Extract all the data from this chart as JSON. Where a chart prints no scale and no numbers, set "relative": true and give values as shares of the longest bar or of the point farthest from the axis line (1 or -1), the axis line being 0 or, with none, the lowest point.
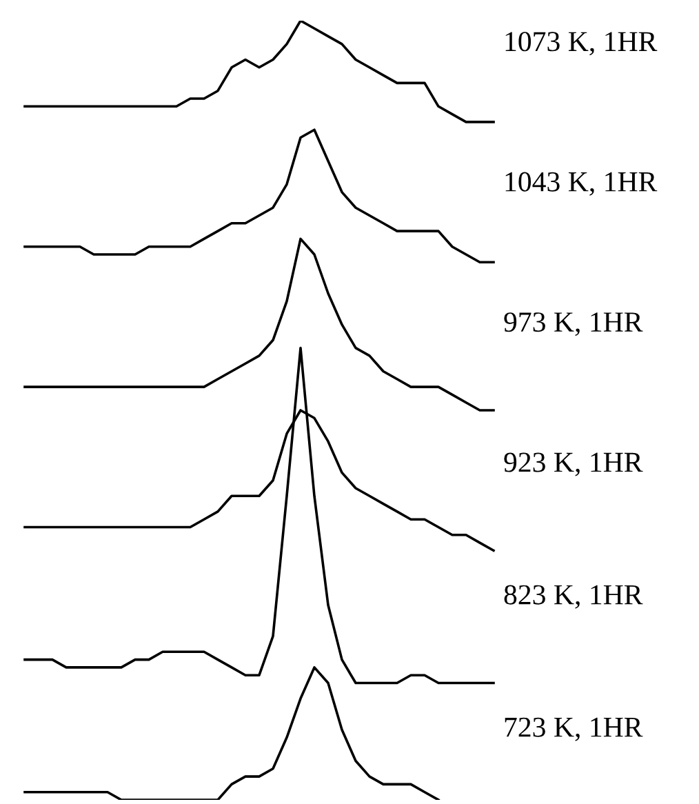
{
  "chart_data": {
    "type": "line",
    "relative": true,
    "legend": false,
    "categories": [
      null,
      null,
      null,
      null,
      null,
      null,
      null,
      null,
      null,
      null,
      null,
      null,
      null,
      null,
      null,
      null,
      null,
      null,
      null,
      null,
      null,
      null,
      null,
      null,
      null,
      null,
      null,
      null,
      null,
      null,
      null,
      null,
      null,
      null,
      null
    ],
    "series": [
      {
        "name": "1073 K, 1HR",
        "color": "#000000",
        "values": [
          0.89,
          0.89,
          0.89,
          0.89,
          0.89,
          0.89,
          0.89,
          0.89,
          0.89,
          0.89,
          0.89,
          0.89,
          0.9,
          0.9,
          0.91,
          0.94,
          0.95,
          0.94,
          0.95,
          0.97,
          1.0,
          0.99,
          0.98,
          0.97,
          0.95,
          0.94,
          0.93,
          0.92,
          0.92,
          0.92,
          0.89,
          0.88,
          0.87,
          0.87,
          0.87
        ]
      },
      {
        "name": "1043 K, 1HR",
        "color": "#000000",
        "values": [
          0.71,
          0.71,
          0.71,
          0.71,
          0.71,
          0.7,
          0.7,
          0.7,
          0.7,
          0.71,
          0.71,
          0.71,
          0.71,
          0.72,
          0.73,
          0.74,
          0.74,
          0.75,
          0.76,
          0.79,
          0.85,
          0.86,
          0.82,
          0.78,
          0.76,
          0.75,
          0.74,
          0.73,
          0.73,
          0.73,
          0.73,
          0.71,
          0.7,
          0.69,
          0.69
        ]
      },
      {
        "name": "973 K, 1HR",
        "color": "#000000",
        "values": [
          0.53,
          0.53,
          0.53,
          0.53,
          0.53,
          0.53,
          0.53,
          0.53,
          0.53,
          0.53,
          0.53,
          0.53,
          0.53,
          0.53,
          0.54,
          0.55,
          0.56,
          0.57,
          0.59,
          0.64,
          0.72,
          0.7,
          0.65,
          0.61,
          0.58,
          0.57,
          0.55,
          0.54,
          0.53,
          0.53,
          0.53,
          0.52,
          0.51,
          0.5,
          0.5
        ]
      },
      {
        "name": "923 K, 1HR",
        "color": "#000000",
        "values": [
          0.35,
          0.35,
          0.35,
          0.35,
          0.35,
          0.35,
          0.35,
          0.35,
          0.35,
          0.35,
          0.35,
          0.35,
          0.35,
          0.36,
          0.37,
          0.39,
          0.39,
          0.39,
          0.41,
          0.47,
          0.5,
          0.49,
          0.46,
          0.42,
          0.4,
          0.39,
          0.38,
          0.37,
          0.36,
          0.36,
          0.35,
          0.34,
          0.34,
          0.33,
          0.32
        ]
      },
      {
        "name": "823 K, 1HR",
        "color": "#000000",
        "values": [
          0.18,
          0.18,
          0.18,
          0.17,
          0.17,
          0.17,
          0.17,
          0.17,
          0.18,
          0.18,
          0.19,
          0.19,
          0.19,
          0.19,
          0.18,
          0.17,
          0.16,
          0.16,
          0.21,
          0.39,
          0.58,
          0.39,
          0.25,
          0.18,
          0.15,
          0.15,
          0.15,
          0.15,
          0.16,
          0.16,
          0.15,
          0.15,
          0.15,
          0.15,
          0.15
        ]
      },
      {
        "name": "723 K, 1HR",
        "color": "#000000",
        "values": [
          0.01,
          0.01,
          0.01,
          0.01,
          0.01,
          0.01,
          0.01,
          0,
          0,
          0,
          0,
          0,
          0,
          0,
          0,
          0.02,
          0.03,
          0.03,
          0.04,
          0.08,
          0.13,
          0.17,
          0.15,
          0.09,
          0.05,
          0.03,
          0.02,
          0.02,
          0.02,
          0.01,
          0,
          null,
          null,
          null,
          null
        ]
      }
    ]
  }
}
